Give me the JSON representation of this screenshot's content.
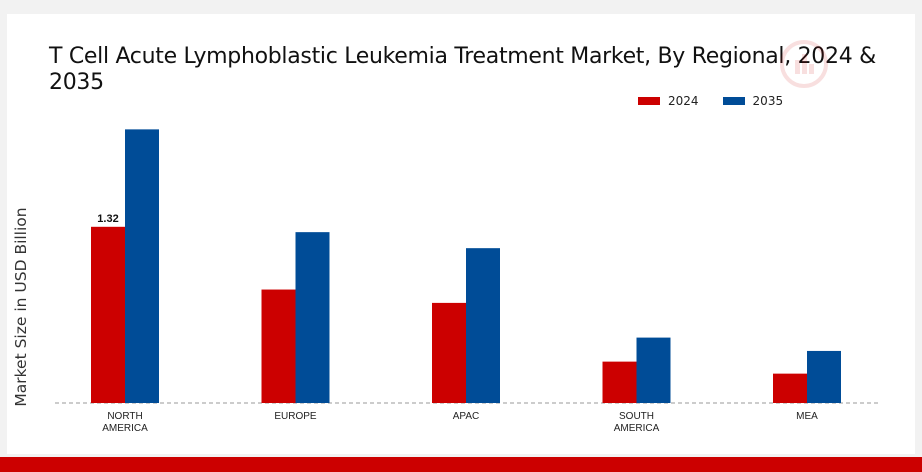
{
  "chart_data": {
    "type": "bar",
    "title": "T Cell Acute Lymphoblastic Leukemia Treatment Market, By Regional, 2024 & 2035",
    "xlabel": "",
    "ylabel": "Market Size in USD Billion",
    "categories": [
      "NORTH\nAMERICA",
      "EUROPE",
      "APAC",
      "SOUTH\nAMERICA",
      "MEA"
    ],
    "series": [
      {
        "name": "2024",
        "color": "#cc0000",
        "values": [
          1.32,
          0.85,
          0.75,
          0.31,
          0.22
        ]
      },
      {
        "name": "2035",
        "color": "#004c97",
        "values": [
          2.05,
          1.28,
          1.16,
          0.49,
          0.39
        ]
      }
    ],
    "data_labels": [
      {
        "series": 0,
        "index": 0,
        "text": "1.32"
      }
    ],
    "ylim": [
      0,
      2.3
    ],
    "grid": false,
    "legend_position": "top-right",
    "baseline_style": "dashed"
  }
}
